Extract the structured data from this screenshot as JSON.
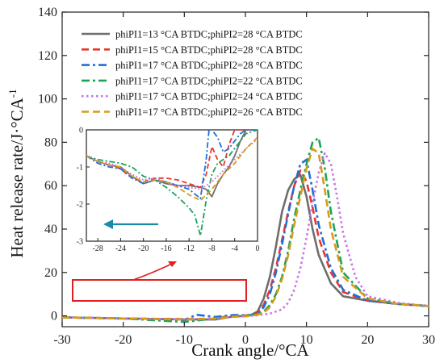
{
  "chart_data": {
    "type": "line",
    "xlabel": "Crank angle/°CA",
    "ylabel_main": "Heat release rate/J·°CA",
    "ylabel_sup": "-1",
    "xlim": [
      -30,
      30
    ],
    "ylim": [
      -5,
      140
    ],
    "xticks": [
      -30,
      -20,
      -10,
      0,
      10,
      20,
      30
    ],
    "yticks": [
      0,
      20,
      40,
      60,
      80,
      100,
      120,
      140
    ],
    "legend_position": "top-center",
    "grid": false,
    "series": [
      {
        "name": "phiPI1=13 °CA BTDC;phiPI2=28 °CA BTDC",
        "color": "#6e6e6e",
        "dash": "solid",
        "x": [
          -30,
          -20,
          -10,
          -5,
          -2,
          0,
          1,
          2,
          3,
          4,
          5,
          6,
          7,
          8,
          9,
          10,
          11,
          12,
          14,
          16,
          20,
          25,
          30
        ],
        "y": [
          -0.7,
          -1.2,
          -1.6,
          -1.7,
          -0.3,
          0.0,
          0.5,
          2,
          8,
          18,
          32,
          48,
          58,
          63,
          65,
          55,
          40,
          28,
          15,
          9,
          7,
          5.5,
          4.5
        ]
      },
      {
        "name": "phiPI1=15 °CA BTDC;phiPI2=28 °CA BTDC",
        "color": "#e8352f",
        "dash": "dash",
        "x": [
          -30,
          -20,
          -10,
          -5,
          -2,
          0,
          1,
          2,
          3,
          4,
          5,
          6,
          7,
          8,
          9,
          10,
          11,
          12,
          14,
          16,
          20,
          25,
          30
        ],
        "y": [
          -0.7,
          -1.2,
          -1.5,
          -1.3,
          0.3,
          0.2,
          0.5,
          1.5,
          5,
          12,
          22,
          35,
          48,
          60,
          67,
          62,
          50,
          36,
          20,
          11,
          7,
          5.5,
          4.5
        ]
      },
      {
        "name": "phiPI1=17 °CA BTDC;phiPI2=28 °CA BTDC",
        "color": "#1f6fd6",
        "dash": "dashdot",
        "x": [
          -30,
          -20,
          -10,
          -8,
          -5,
          -2,
          0,
          1,
          2,
          3,
          4,
          5,
          6,
          7,
          8,
          9,
          10,
          11,
          12,
          14,
          16,
          20,
          25,
          30
        ],
        "y": [
          -0.7,
          -1.3,
          -1.9,
          0.5,
          -0.5,
          0.4,
          0.2,
          0.5,
          1.2,
          4,
          10,
          20,
          33,
          47,
          60,
          70,
          72,
          58,
          42,
          22,
          12,
          7,
          5.5,
          4.5
        ]
      },
      {
        "name": "phiPI1=17 °CA BTDC;phiPI2=22 °CA BTDC",
        "color": "#1aa35a",
        "dash": "dashdot",
        "x": [
          -30,
          -20,
          -10,
          -5,
          -2,
          0,
          1,
          2,
          3,
          4,
          5,
          6,
          7,
          8,
          9,
          10,
          11,
          12,
          13,
          14,
          16,
          20,
          25,
          30
        ],
        "y": [
          -0.7,
          -1.2,
          -2.8,
          -1.2,
          -0.3,
          0.0,
          0.3,
          0.8,
          2,
          5,
          10,
          18,
          30,
          45,
          58,
          70,
          80,
          82,
          68,
          48,
          20,
          8,
          5.5,
          4.5
        ]
      },
      {
        "name": "phiPI1=17 °CA BTDC;phiPI2=24 °CA BTDC",
        "color": "#c873e6",
        "dash": "dot",
        "x": [
          -30,
          -20,
          -10,
          -5,
          -2,
          0,
          2,
          4,
          6,
          7,
          8,
          9,
          10,
          11,
          12,
          13,
          14,
          15,
          16,
          18,
          20,
          25,
          30
        ],
        "y": [
          -0.7,
          -1.2,
          -1.6,
          -1.3,
          -0.4,
          -0.2,
          0.3,
          1,
          3,
          6,
          12,
          22,
          36,
          52,
          66,
          75,
          70,
          55,
          38,
          18,
          9,
          6,
          4.5
        ]
      },
      {
        "name": "phiPI1=17 °CA BTDC;phiPI2=26 °CA BTDC",
        "color": "#d99a1a",
        "dash": "dash",
        "x": [
          -30,
          -20,
          -10,
          -5,
          -2,
          0,
          2,
          3,
          4,
          5,
          6,
          7,
          8,
          9,
          10,
          11,
          12,
          13,
          14,
          16,
          20,
          25,
          30
        ],
        "y": [
          -0.7,
          -1.2,
          -1.7,
          -1.3,
          -0.4,
          -0.2,
          0.5,
          1.5,
          4,
          9,
          17,
          28,
          42,
          55,
          68,
          77,
          75,
          58,
          40,
          18,
          8,
          5.5,
          4.5
        ]
      }
    ],
    "inset": {
      "xlim": [
        -30,
        0
      ],
      "ylim": [
        -3,
        0
      ],
      "xticks": [
        -28,
        -24,
        -20,
        -16,
        -12,
        -8,
        -4,
        0
      ],
      "yticks": [
        -3,
        -2,
        -1,
        0
      ]
    }
  }
}
